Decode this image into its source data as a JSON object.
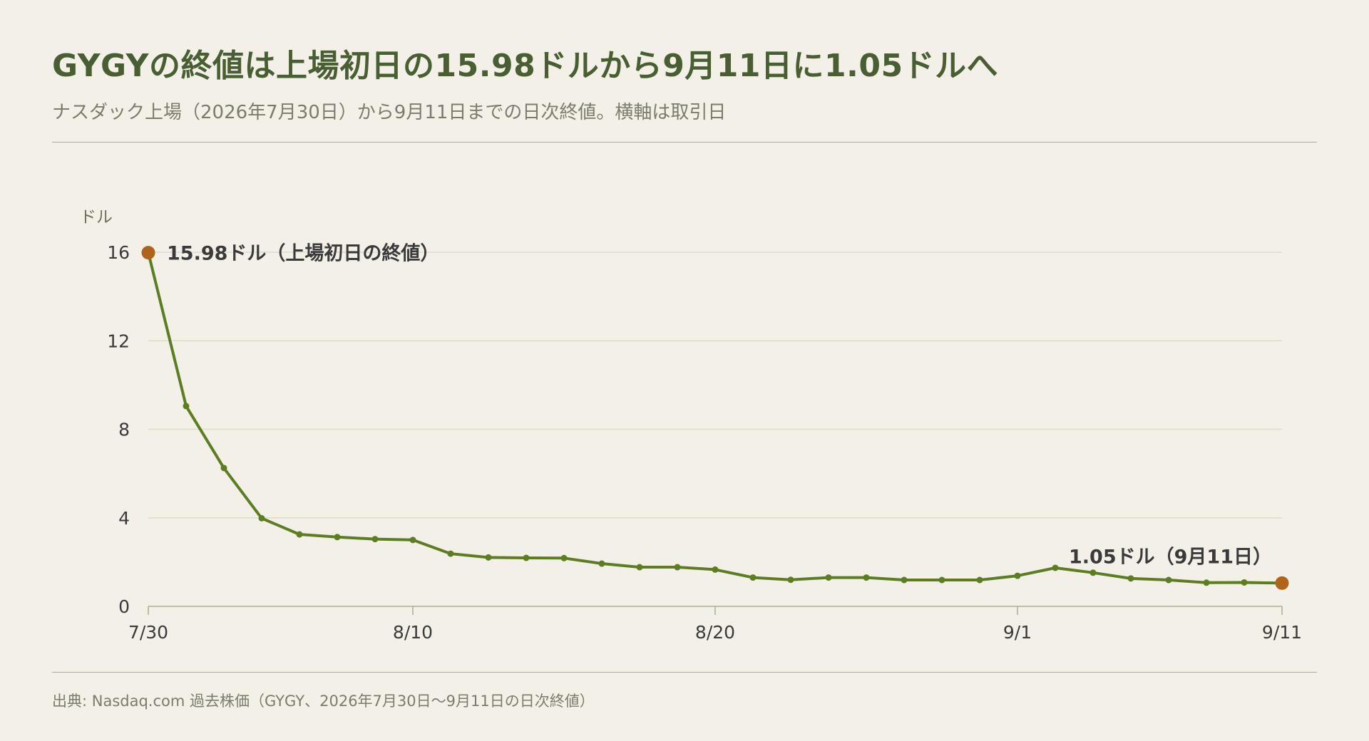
{
  "header": {
    "title": "GYGYの終値は上場初日の15.98ドルから9月11日に1.05ドルへ",
    "subtitle": "ナスダック上場（2026年7月30日）から9月11日までの日次終値。横軸は取引日"
  },
  "footer": {
    "source": "出典: Nasdaq.com 過去株価（GYGY、2026年7月30日〜9月11日の日次終値）"
  },
  "colors": {
    "line": "#5c7d22",
    "marker": "#5c7d22",
    "highlight": "#b0641a",
    "title": "#4a5e33",
    "grid": "#dedbd1",
    "axis": "#a8ad96"
  },
  "chart_data": {
    "type": "line",
    "ylabel": "ドル",
    "ylim": [
      0,
      16
    ],
    "yticks": [
      0,
      4,
      8,
      12,
      16
    ],
    "x_axis": "trading days",
    "xticks": [
      {
        "label": "7/30",
        "index": 0
      },
      {
        "label": "8/10",
        "index": 7
      },
      {
        "label": "8/20",
        "index": 15
      },
      {
        "label": "9/1",
        "index": 23
      },
      {
        "label": "9/11",
        "index": 30
      }
    ],
    "grid": "horizontal",
    "series": [
      {
        "values": [
          15.98,
          9.05,
          6.25,
          3.98,
          3.25,
          3.13,
          3.04,
          3.0,
          2.38,
          2.21,
          2.19,
          2.18,
          1.93,
          1.77,
          1.77,
          1.66,
          1.3,
          1.2,
          1.3,
          1.3,
          1.19,
          1.19,
          1.19,
          1.38,
          1.74,
          1.52,
          1.26,
          1.19,
          1.07,
          1.08,
          1.05
        ]
      }
    ],
    "annotations": [
      {
        "index": 0,
        "value": 15.98,
        "text": "15.98ドル（上場初日の終値）",
        "position": "right"
      },
      {
        "index": 30,
        "value": 1.05,
        "text": "1.05ドル（9月11日）",
        "position": "above-left"
      }
    ]
  }
}
